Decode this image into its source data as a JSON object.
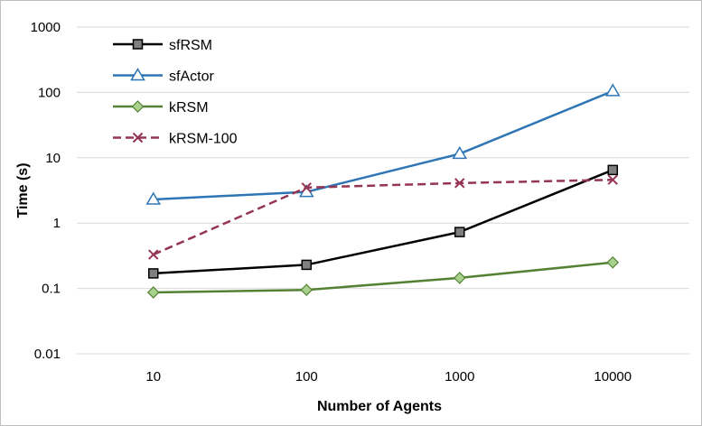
{
  "chart_data": {
    "type": "line",
    "title": "",
    "xlabel": "Number of Agents",
    "ylabel": "Time (s)",
    "x_scale": "log",
    "y_scale": "log",
    "categories": [
      "10",
      "100",
      "1000",
      "10000"
    ],
    "x": [
      10,
      100,
      1000,
      10000
    ],
    "ylim": [
      0.01,
      1000
    ],
    "y_ticks": [
      "0.01",
      "0.1",
      "1",
      "10",
      "100",
      "1000"
    ],
    "grid": true,
    "legend_position": "top-left",
    "series": [
      {
        "name": "sfRSM",
        "values": [
          0.17,
          0.23,
          0.73,
          6.5
        ],
        "color": "#000000",
        "marker": "square",
        "dash": false
      },
      {
        "name": "sfActor",
        "values": [
          2.3,
          3.0,
          11.5,
          105
        ],
        "color": "#2e75b6",
        "marker": "triangle",
        "dash": false
      },
      {
        "name": "kRSM",
        "values": [
          0.087,
          0.095,
          0.145,
          0.25
        ],
        "color": "#548235",
        "marker": "diamond",
        "dash": false
      },
      {
        "name": "kRSM-100",
        "values": [
          0.33,
          3.5,
          4.1,
          4.6
        ],
        "color": "#953553",
        "marker": "x",
        "dash": true
      }
    ]
  }
}
